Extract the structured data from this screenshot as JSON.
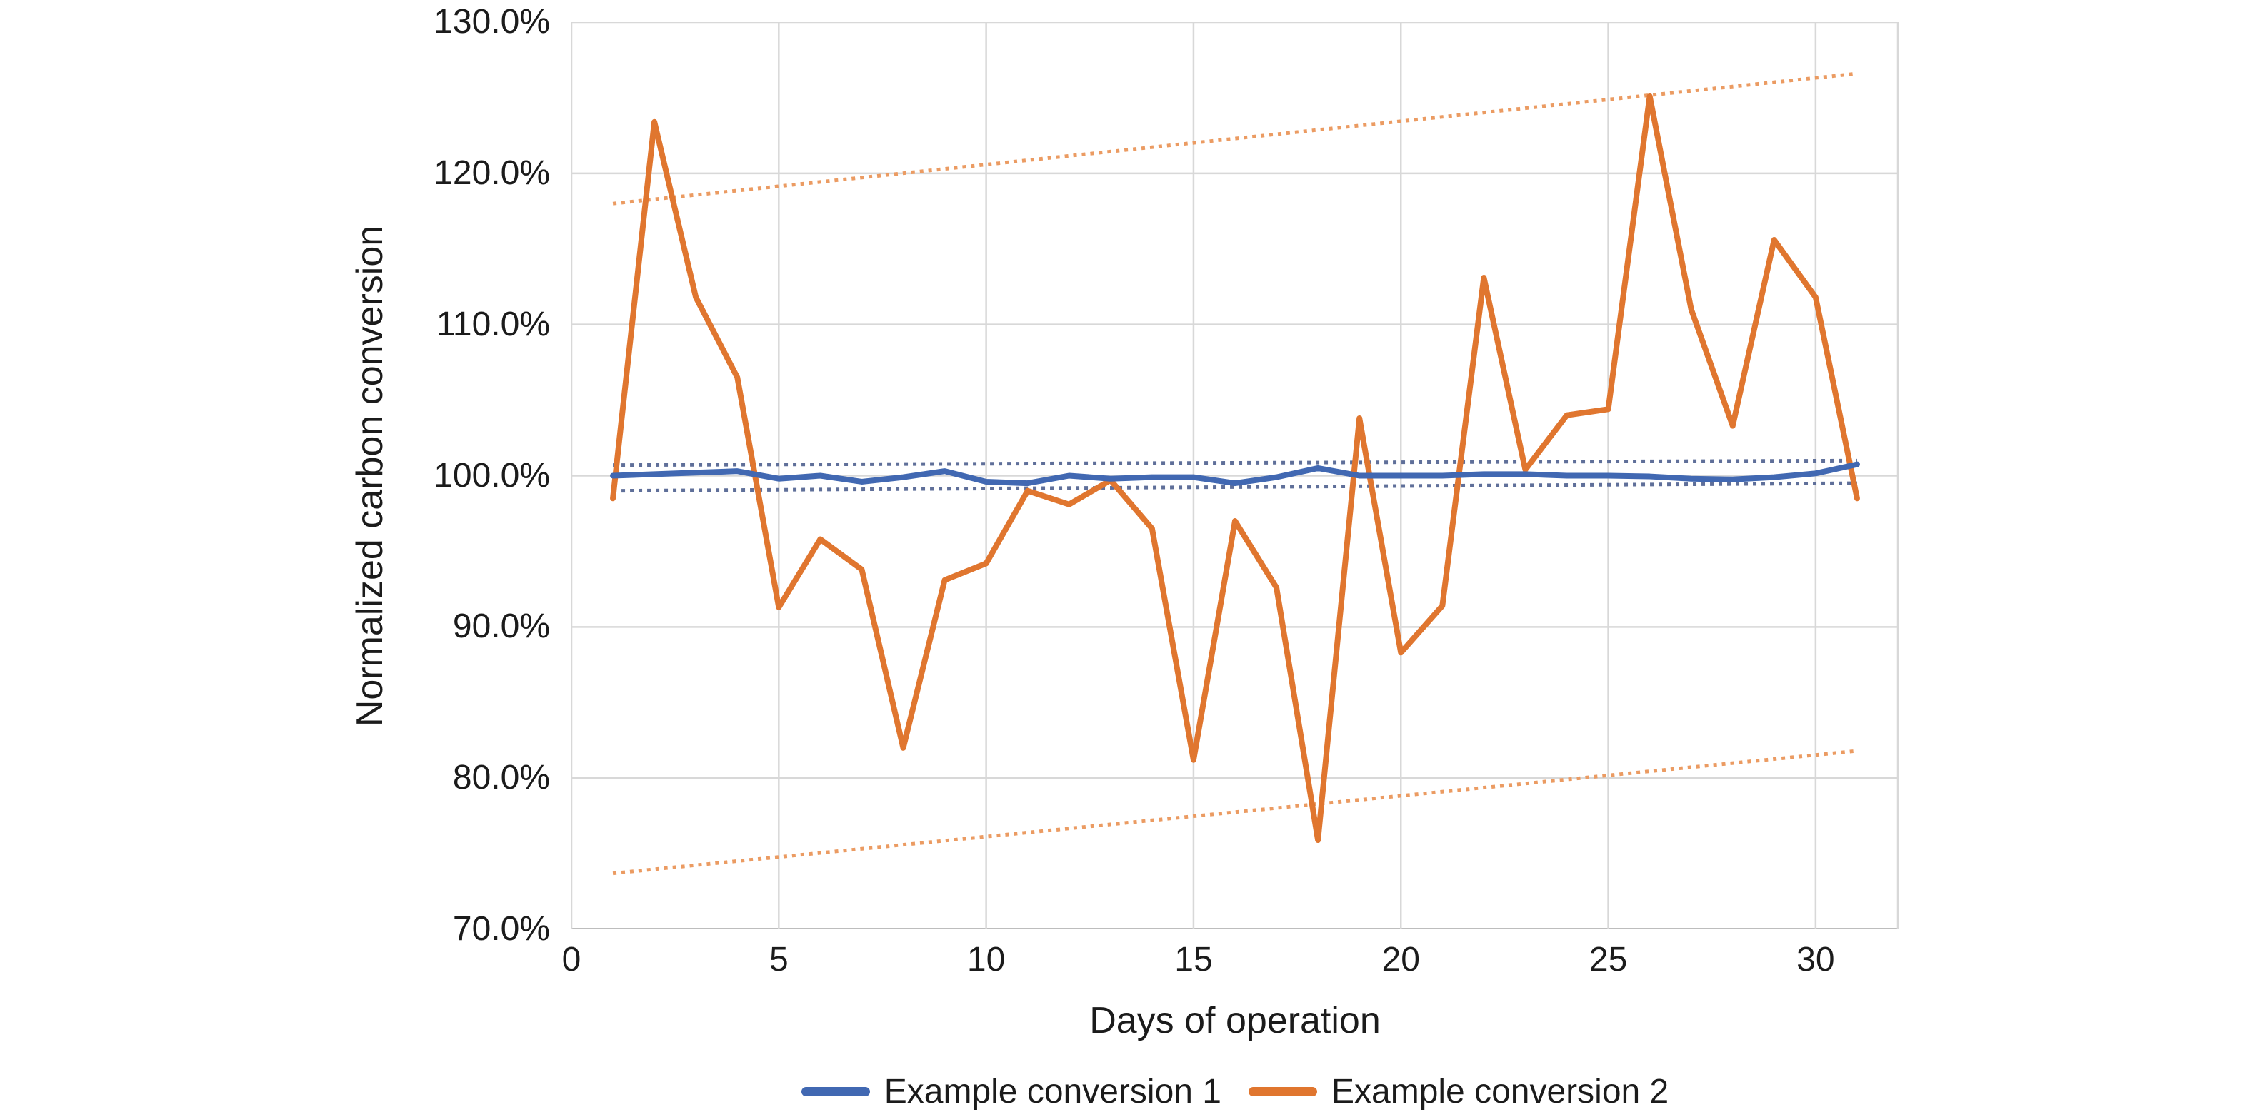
{
  "chart_data": {
    "type": "line",
    "title": "",
    "xlabel": "Days of operation",
    "ylabel": "Normalized carbon conversion",
    "xlim": [
      0,
      32
    ],
    "ylim": [
      70,
      130
    ],
    "grid": true,
    "legend_position": "bottom",
    "x_ticks": [
      {
        "label": "0",
        "value": 0
      },
      {
        "label": "5",
        "value": 5
      },
      {
        "label": "10",
        "value": 10
      },
      {
        "label": "15",
        "value": 15
      },
      {
        "label": "20",
        "value": 20
      },
      {
        "label": "25",
        "value": 25
      },
      {
        "label": "30",
        "value": 30
      }
    ],
    "y_ticks": [
      {
        "label": "130.0%",
        "value": 130
      },
      {
        "label": "120.0%",
        "value": 120
      },
      {
        "label": "110.0%",
        "value": 110
      },
      {
        "label": "100.0%",
        "value": 100
      },
      {
        "label": "90.0%",
        "value": 90
      },
      {
        "label": "80.0%",
        "value": 80
      },
      {
        "label": "70.0%",
        "value": 70
      }
    ],
    "series": [
      {
        "name": "example-conversion-2-upper-limit",
        "style": "dotted",
        "color": "#EB9B62",
        "x": [
          1,
          31
        ],
        "values": [
          118.0,
          126.6
        ]
      },
      {
        "name": "example-conversion-2-lower-limit",
        "style": "dotted",
        "color": "#EB9B62",
        "x": [
          1,
          31
        ],
        "values": [
          73.7,
          81.8
        ]
      },
      {
        "name": "example-conversion-1-upper-limit",
        "style": "dotted",
        "color": "#5F6F99",
        "x": [
          1,
          31
        ],
        "values": [
          100.7,
          101.0
        ]
      },
      {
        "name": "example-conversion-1-lower-limit",
        "style": "dotted",
        "color": "#5F6F99",
        "x": [
          1,
          31
        ],
        "values": [
          99.0,
          99.5
        ]
      },
      {
        "name": "Example conversion 2",
        "style": "solid",
        "color": "#E0762F",
        "x": [
          1,
          2,
          3,
          4,
          5,
          6,
          7,
          8,
          9,
          10,
          11,
          12,
          13,
          14,
          15,
          16,
          17,
          18,
          19,
          20,
          21,
          22,
          23,
          24,
          25,
          26,
          27,
          28,
          29,
          30,
          31
        ],
        "values": [
          98.5,
          123.4,
          111.8,
          106.5,
          91.3,
          95.8,
          93.8,
          82.0,
          93.1,
          94.2,
          99.0,
          98.1,
          99.7,
          96.5,
          81.2,
          97.0,
          92.6,
          75.9,
          103.8,
          88.3,
          91.4,
          113.1,
          100.4,
          104.0,
          104.4,
          125.1,
          111.0,
          103.3,
          115.6,
          111.8,
          98.5
        ]
      },
      {
        "name": "Example conversion 1",
        "style": "solid",
        "color": "#4168B2",
        "x": [
          1,
          2,
          3,
          4,
          5,
          6,
          7,
          8,
          9,
          10,
          11,
          12,
          13,
          14,
          15,
          16,
          17,
          18,
          19,
          20,
          21,
          22,
          23,
          24,
          25,
          26,
          27,
          28,
          29,
          30,
          31
        ],
        "values": [
          100.0,
          100.1,
          100.2,
          100.3,
          99.8,
          100.0,
          99.6,
          99.9,
          100.3,
          99.6,
          99.5,
          100.0,
          99.8,
          99.9,
          99.9,
          99.5,
          99.9,
          100.5,
          100.0,
          100.0,
          100.0,
          100.1,
          100.1,
          100.0,
          100.0,
          99.95,
          99.8,
          99.75,
          99.9,
          100.15,
          100.75
        ]
      }
    ],
    "legend_items": [
      {
        "label": "Example conversion 1",
        "color": "#4168B2"
      },
      {
        "label": "Example conversion 2",
        "color": "#E0762F"
      }
    ],
    "colors": {
      "gridline": "#D8D8D8",
      "axis_line": "#BDBDBD",
      "text": "#1B1B1B",
      "background": "#FFFFFF"
    }
  }
}
